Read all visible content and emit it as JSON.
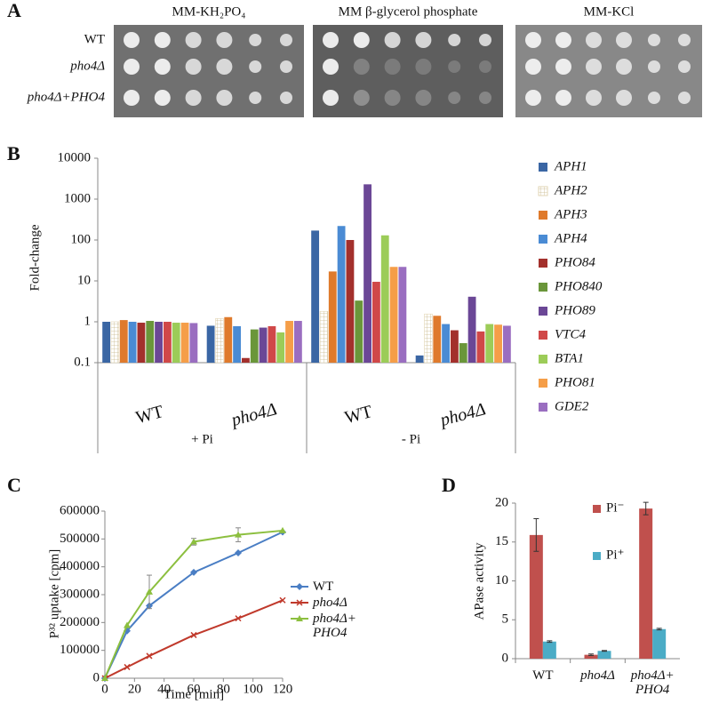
{
  "panel_a": {
    "label": "A",
    "plates": [
      "MM-KH₂PO₄",
      "MM β-glycerol phosphate",
      "MM-KCl"
    ],
    "strains": [
      "WT",
      "pho4Δ",
      "pho4Δ+PHO4"
    ]
  },
  "chart_data": [
    {
      "type": "bar",
      "panel_label": "B",
      "ylabel": "Fold-change",
      "log_scale": true,
      "ylim": [
        0.1,
        10000
      ],
      "yticks": [
        0.1,
        1,
        10,
        100,
        1000,
        10000
      ],
      "categories": [
        "WT",
        "pho4Δ",
        "WT",
        "pho4Δ"
      ],
      "category_groups": [
        "+ Pi",
        "- Pi"
      ],
      "series": [
        {
          "name": "APH1",
          "color": "#3a66a4",
          "values": [
            1.0,
            0.8,
            170,
            0.15
          ]
        },
        {
          "name": "APH2",
          "color": "#e2d6b4",
          "pattern": "grid",
          "values": [
            1.0,
            1.2,
            1.8,
            1.55
          ]
        },
        {
          "name": "APH3",
          "color": "#df7a2c",
          "values": [
            1.1,
            1.3,
            17,
            1.4
          ]
        },
        {
          "name": "APH4",
          "color": "#4a8bd4",
          "values": [
            1.0,
            0.78,
            220,
            0.88
          ]
        },
        {
          "name": "PHO84",
          "color": "#a3302c",
          "values": [
            0.95,
            0.13,
            100,
            0.62
          ]
        },
        {
          "name": "PHO840",
          "color": "#6a963a",
          "values": [
            1.05,
            0.65,
            3.3,
            0.3
          ]
        },
        {
          "name": "PHO89",
          "color": "#6b4796",
          "values": [
            1.0,
            0.72,
            2300,
            4.1
          ]
        },
        {
          "name": "VTC4",
          "color": "#d04848",
          "values": [
            1.0,
            0.78,
            9.5,
            0.58
          ]
        },
        {
          "name": "BTA1",
          "color": "#9ccc58",
          "values": [
            0.95,
            0.55,
            130,
            0.88
          ]
        },
        {
          "name": "PHO81",
          "color": "#f59e48",
          "values": [
            0.95,
            1.05,
            22,
            0.85
          ]
        },
        {
          "name": "GDE2",
          "color": "#9a6ec0",
          "values": [
            0.93,
            1.05,
            22,
            0.8
          ]
        }
      ]
    },
    {
      "type": "line",
      "panel_label": "C",
      "ylabel": "P³² uptake [cpm]",
      "xlabel": "Time [min]",
      "x": [
        0,
        15,
        30,
        60,
        90,
        120
      ],
      "xlim": [
        0,
        120
      ],
      "xticks": [
        0,
        20,
        40,
        60,
        80,
        100,
        120
      ],
      "ylim": [
        0,
        600000
      ],
      "yticks": [
        0,
        100000,
        200000,
        300000,
        400000,
        500000,
        600000
      ],
      "series": [
        {
          "name": "WT",
          "color": "#4a7ec4",
          "marker": "diamond",
          "values": [
            0,
            170000,
            260000,
            380000,
            450000,
            525000
          ]
        },
        {
          "name": "pho4Δ",
          "color": "#c0392b",
          "marker": "x",
          "values": [
            0,
            40000,
            80000,
            155000,
            215000,
            280000
          ]
        },
        {
          "name": "pho4Δ+ PHO4",
          "color": "#8cbf3f",
          "marker": "triangle",
          "values": [
            0,
            190000,
            310000,
            490000,
            515000,
            530000
          ],
          "errors": [
            null,
            null,
            60000,
            12000,
            25000,
            null
          ]
        }
      ]
    },
    {
      "type": "bar",
      "panel_label": "D",
      "ylabel": "APase activity",
      "ylim": [
        0,
        20
      ],
      "yticks": [
        0,
        5,
        10,
        15,
        20
      ],
      "categories": [
        "WT",
        "pho4Δ",
        "pho4Δ+ PHO4"
      ],
      "series": [
        {
          "name": "Pi⁻",
          "color": "#c0504d",
          "values": [
            15.9,
            0.5,
            19.3
          ],
          "errors": [
            2.1,
            0.1,
            0.8
          ]
        },
        {
          "name": "Pi⁺",
          "color": "#4bacc6",
          "values": [
            2.2,
            1.0,
            3.8
          ],
          "errors": [
            0.1,
            0.05,
            0.1
          ]
        }
      ]
    }
  ]
}
